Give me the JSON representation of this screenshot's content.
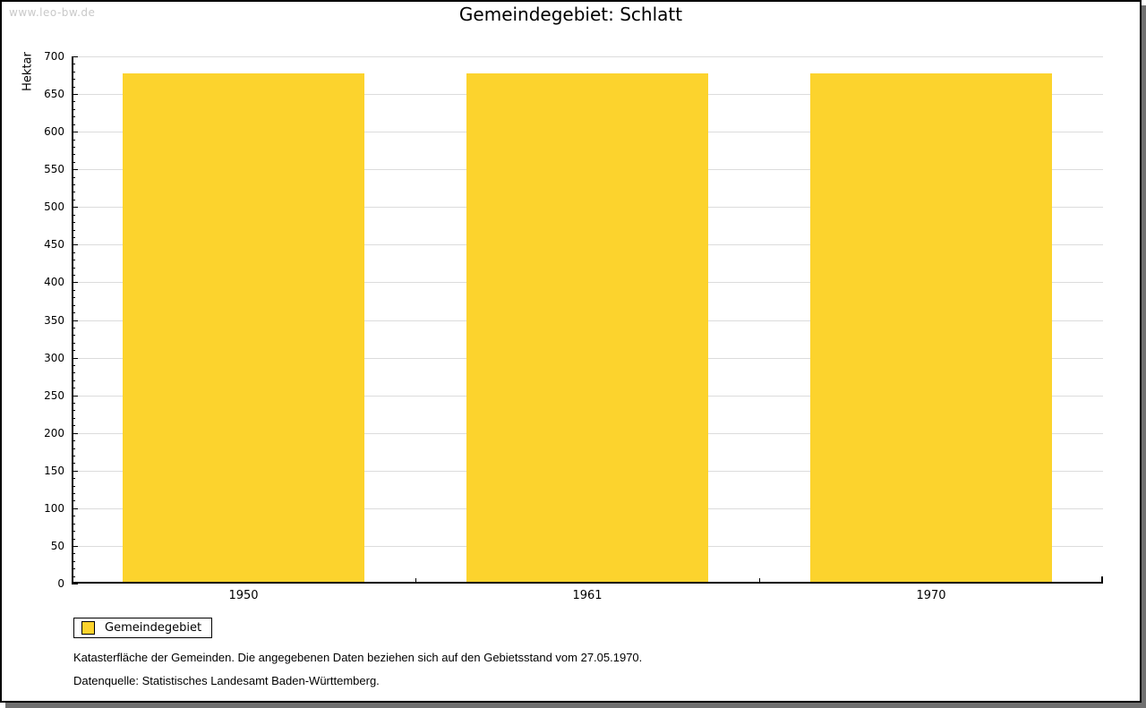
{
  "watermark": "www.leo-bw.de",
  "title": "Gemeindegebiet: Schlatt",
  "chart_data": {
    "type": "bar",
    "title": "Gemeindegebiet: Schlatt",
    "categories": [
      "1950",
      "1961",
      "1970"
    ],
    "series": [
      {
        "name": "Gemeindegebiet",
        "values": [
          677,
          677,
          677
        ]
      }
    ],
    "xlabel": "",
    "ylabel": "Hektar",
    "ylim": [
      0,
      700
    ],
    "ytick_step": 50,
    "minor_tick_step": 10,
    "grid": true,
    "legend_position": "bottom-left",
    "bar_color": "#FCD32D"
  },
  "legend": {
    "label": "Gemeindegebiet"
  },
  "footnotes": [
    "Katasterfläche der Gemeinden. Die angegebenen Daten beziehen sich auf den Gebietsstand vom 27.05.1970.",
    "Datenquelle: Statistisches Landesamt Baden-Württemberg."
  ],
  "colors": {
    "bar": "#FCD32D",
    "gridline": "#DCDCDC",
    "watermark_text": "#C9C9C9",
    "frame_shadow": "#707070",
    "axis": "#000000"
  }
}
